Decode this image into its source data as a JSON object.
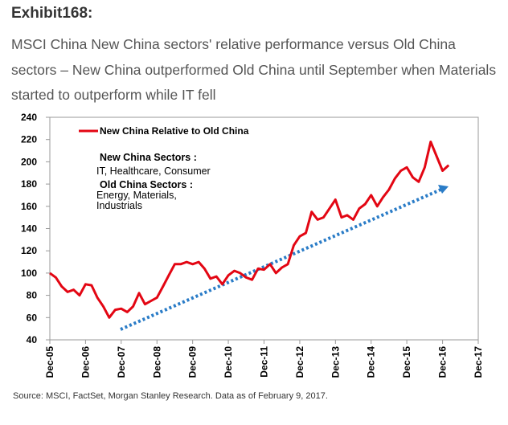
{
  "chart_data": {
    "type": "line",
    "title": "Exhibit168:",
    "subtitle": "MSCI China New China sectors' relative performance versus Old China sectors – New China outperformed Old China until September when Materials started to outperform while IT fell",
    "source": "Source: MSCI, FactSet, Morgan Stanley Research. Data as of February 9, 2017.",
    "annotations": [
      "New China Sectors :",
      "IT, Healthcare, Consumer",
      "Old China Sectors :",
      "Energy, Materials,",
      "Industrials"
    ],
    "x": [
      "Dec-05",
      "Feb-06",
      "Apr-06",
      "Jun-06",
      "Aug-06",
      "Oct-06",
      "Dec-06",
      "Feb-07",
      "Apr-07",
      "Jun-07",
      "Aug-07",
      "Oct-07",
      "Dec-07",
      "Feb-08",
      "Apr-08",
      "Jun-08",
      "Aug-08",
      "Oct-08",
      "Dec-08",
      "Feb-09",
      "Apr-09",
      "Jun-09",
      "Aug-09",
      "Oct-09",
      "Dec-09",
      "Feb-10",
      "Apr-10",
      "Jun-10",
      "Aug-10",
      "Oct-10",
      "Dec-10",
      "Feb-11",
      "Apr-11",
      "Jun-11",
      "Aug-11",
      "Oct-11",
      "Dec-11",
      "Feb-12",
      "Apr-12",
      "Jun-12",
      "Aug-12",
      "Oct-12",
      "Dec-12",
      "Feb-13",
      "Apr-13",
      "Jun-13",
      "Aug-13",
      "Oct-13",
      "Dec-13",
      "Feb-14",
      "Apr-14",
      "Jun-14",
      "Aug-14",
      "Oct-14",
      "Dec-14",
      "Feb-15",
      "Apr-15",
      "Jun-15",
      "Aug-15",
      "Oct-15",
      "Dec-15",
      "Feb-16",
      "Apr-16",
      "Jun-16",
      "Aug-16",
      "Oct-16",
      "Dec-16",
      "Feb-17"
    ],
    "series": [
      {
        "name": "New China Relative to Old China",
        "color": "#e30613",
        "values": [
          100,
          96,
          88,
          83,
          85,
          80,
          90,
          89,
          78,
          70,
          60,
          67,
          68,
          65,
          70,
          82,
          72,
          75,
          78,
          88,
          98,
          108,
          108,
          110,
          108,
          110,
          104,
          95,
          97,
          90,
          98,
          102,
          100,
          96,
          94,
          104,
          103,
          108,
          100,
          105,
          108,
          125,
          133,
          136,
          155,
          148,
          150,
          158,
          166,
          150,
          152,
          148,
          158,
          162,
          170,
          160,
          168,
          175,
          185,
          192,
          195,
          186,
          182,
          195,
          218,
          205,
          192,
          197
        ]
      }
    ],
    "xlim": [
      "Dec-05",
      "Dec-17"
    ],
    "xticks": [
      "Dec-05",
      "Dec-06",
      "Dec-07",
      "Dec-08",
      "Dec-09",
      "Dec-10",
      "Dec-11",
      "Dec-12",
      "Dec-13",
      "Dec-14",
      "Dec-15",
      "Dec-16",
      "Dec-17"
    ],
    "ylim": [
      40,
      240
    ],
    "yticks": [
      40,
      60,
      80,
      100,
      120,
      140,
      160,
      180,
      200,
      220,
      240
    ],
    "legend": "upper left"
  }
}
